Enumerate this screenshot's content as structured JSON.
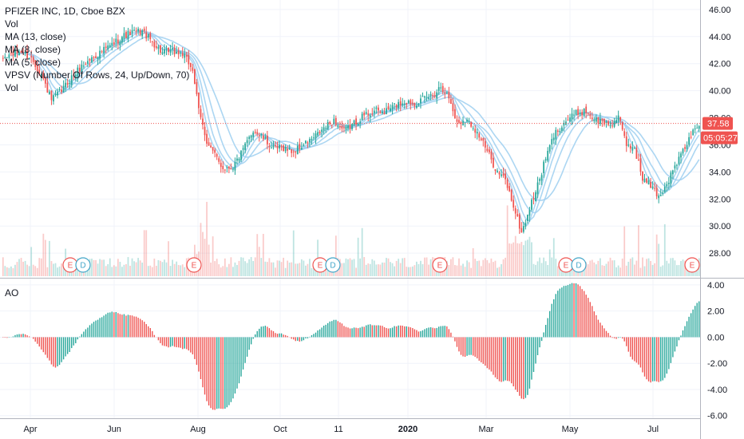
{
  "legend": {
    "title": "PFIZER INC, 1D, Cboe BZX",
    "vol": "Vol",
    "ma13": "MA (13, close)",
    "ma8": "MA (8, close)",
    "ma5": "MA (5, close)",
    "vpsv": "VPSV (Number Of Rows, 24, Up/Down, 70)",
    "vol2": "Vol"
  },
  "ao_label": "AO",
  "price_tag": "37.58",
  "time_tag": "05:05:27",
  "colors": {
    "up": "#26a69a",
    "down": "#ef5350",
    "ma": "#9ecff0",
    "ao_up": "#26a69a",
    "ao_down": "#ef5350",
    "tag": "#ef5350"
  },
  "chart_data": [
    {
      "type": "candlestick",
      "title": "PFIZER INC, 1D, Cboe BZX",
      "x_ticks": [
        "Apr",
        "Jun",
        "Aug",
        "Oct",
        "11",
        "2020",
        "Mar",
        "May",
        "Jul"
      ],
      "y_ticks": [
        "46.00",
        "44.00",
        "42.00",
        "40.00",
        "38.00",
        "36.00",
        "34.00",
        "32.00",
        "30.00",
        "28.00"
      ],
      "ylim": [
        26.3,
        46.7
      ],
      "last_price": 37.58,
      "event_markers": [
        {
          "x": "Apr",
          "labels": [
            "E",
            "D"
          ]
        },
        {
          "x": "Jul",
          "labels": [
            "E"
          ]
        },
        {
          "x": "Oct",
          "labels": [
            "E",
            "D"
          ]
        },
        {
          "x": "2020",
          "labels": [
            "E"
          ]
        },
        {
          "x": "May",
          "labels": [
            "E",
            "D"
          ]
        },
        {
          "x": "Jul",
          "labels": [
            "E"
          ]
        }
      ],
      "close_path": [
        [
          0,
          42.3
        ],
        [
          5,
          42.7
        ],
        [
          10,
          42.9
        ],
        [
          15,
          42.4
        ],
        [
          20,
          41.2
        ],
        [
          25,
          39.3
        ],
        [
          30,
          40.0
        ],
        [
          35,
          41.0
        ],
        [
          40,
          41.8
        ],
        [
          45,
          42.4
        ],
        [
          50,
          42.9
        ],
        [
          55,
          43.4
        ],
        [
          60,
          44.0
        ],
        [
          65,
          44.3
        ],
        [
          70,
          44.4
        ],
        [
          75,
          43.6
        ],
        [
          80,
          42.8
        ],
        [
          85,
          42.9
        ],
        [
          90,
          42.7
        ],
        [
          95,
          41.6
        ],
        [
          98,
          38.5
        ],
        [
          102,
          36.3
        ],
        [
          106,
          35.2
        ],
        [
          110,
          34.3
        ],
        [
          115,
          34.4
        ],
        [
          120,
          35.6
        ],
        [
          125,
          37.1
        ],
        [
          130,
          36.5
        ],
        [
          135,
          35.7
        ],
        [
          140,
          35.8
        ],
        [
          145,
          35.5
        ],
        [
          150,
          36.0
        ],
        [
          155,
          36.5
        ],
        [
          160,
          37.2
        ],
        [
          165,
          37.8
        ],
        [
          170,
          37.0
        ],
        [
          175,
          37.6
        ],
        [
          180,
          38.2
        ],
        [
          185,
          38.5
        ],
        [
          190,
          38.4
        ],
        [
          195,
          38.9
        ],
        [
          200,
          39.2
        ],
        [
          205,
          39.1
        ],
        [
          210,
          39.4
        ],
        [
          215,
          39.8
        ],
        [
          218,
          40.4
        ],
        [
          222,
          39.5
        ],
        [
          226,
          37.6
        ],
        [
          230,
          37.9
        ],
        [
          234,
          37.4
        ],
        [
          238,
          36.4
        ],
        [
          242,
          35.2
        ],
        [
          246,
          34.0
        ],
        [
          250,
          33.4
        ],
        [
          254,
          31.5
        ],
        [
          258,
          29.5
        ],
        [
          262,
          31.3
        ],
        [
          266,
          33.0
        ],
        [
          270,
          35.0
        ],
        [
          274,
          36.7
        ],
        [
          278,
          37.5
        ],
        [
          282,
          38.0
        ],
        [
          286,
          38.4
        ],
        [
          290,
          38.5
        ],
        [
          294,
          37.9
        ],
        [
          298,
          37.7
        ],
        [
          302,
          37.5
        ],
        [
          306,
          38.0
        ],
        [
          310,
          36.0
        ],
        [
          314,
          35.8
        ],
        [
          318,
          33.5
        ],
        [
          322,
          33.0
        ],
        [
          326,
          32.2
        ],
        [
          330,
          33.1
        ],
        [
          334,
          34.4
        ],
        [
          338,
          35.5
        ],
        [
          342,
          36.7
        ],
        [
          346,
          37.6
        ]
      ],
      "ma_periods": [
        5,
        8,
        13
      ],
      "ao_ylim": [
        -6.2,
        4.3
      ],
      "ao_ticks": [
        "4.00",
        "2.00",
        "0.00",
        "-2.00",
        "-4.00",
        "-6.00"
      ],
      "ao_label": "AO"
    }
  ]
}
